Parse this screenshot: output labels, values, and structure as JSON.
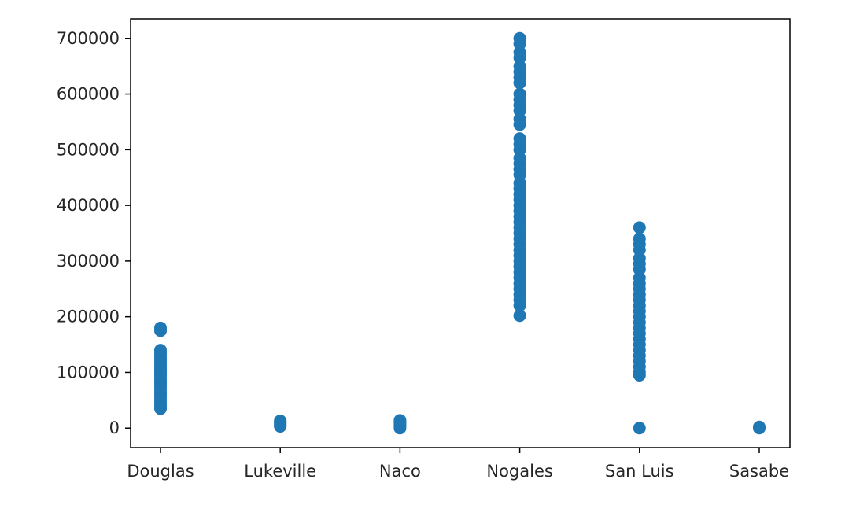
{
  "chart_data": {
    "type": "scatter",
    "title": "",
    "xlabel": "",
    "ylabel": "",
    "categories": [
      "Douglas",
      "Lukeville",
      "Naco",
      "Nogales",
      "San Luis",
      "Sasabe"
    ],
    "yticks": [
      0,
      100000,
      200000,
      300000,
      400000,
      500000,
      600000,
      700000
    ],
    "ytick_labels": [
      "0",
      "100000",
      "200000",
      "300000",
      "400000",
      "500000",
      "600000",
      "700000"
    ],
    "ylim": [
      -35000,
      735000
    ],
    "grid": false,
    "marker_color": "#1f77b4",
    "series": [
      {
        "category": "Douglas",
        "values": [
          35000,
          40000,
          45000,
          50000,
          55000,
          60000,
          65000,
          70000,
          75000,
          80000,
          85000,
          90000,
          95000,
          100000,
          105000,
          110000,
          115000,
          120000,
          125000,
          130000,
          135000,
          140000,
          175000,
          180000
        ]
      },
      {
        "category": "Lukeville",
        "values": [
          3000,
          5000,
          7000,
          9000,
          11000,
          13000
        ]
      },
      {
        "category": "Naco",
        "values": [
          0,
          3000,
          6000,
          9000,
          12000,
          14000
        ]
      },
      {
        "category": "Nogales",
        "values": [
          202000,
          220000,
          230000,
          240000,
          250000,
          260000,
          270000,
          280000,
          290000,
          300000,
          310000,
          320000,
          330000,
          340000,
          350000,
          360000,
          370000,
          380000,
          390000,
          400000,
          410000,
          420000,
          430000,
          440000,
          455000,
          465000,
          475000,
          485000,
          500000,
          510000,
          520000,
          545000,
          555000,
          570000,
          580000,
          590000,
          600000,
          620000,
          630000,
          640000,
          650000,
          665000,
          675000,
          690000,
          700000
        ]
      },
      {
        "category": "San Luis",
        "values": [
          0,
          95000,
          100000,
          110000,
          120000,
          130000,
          140000,
          150000,
          160000,
          170000,
          180000,
          190000,
          200000,
          210000,
          220000,
          230000,
          240000,
          250000,
          260000,
          270000,
          285000,
          295000,
          305000,
          320000,
          330000,
          340000,
          360000
        ]
      },
      {
        "category": "Sasabe",
        "values": [
          0,
          1000,
          2000
        ]
      }
    ]
  }
}
